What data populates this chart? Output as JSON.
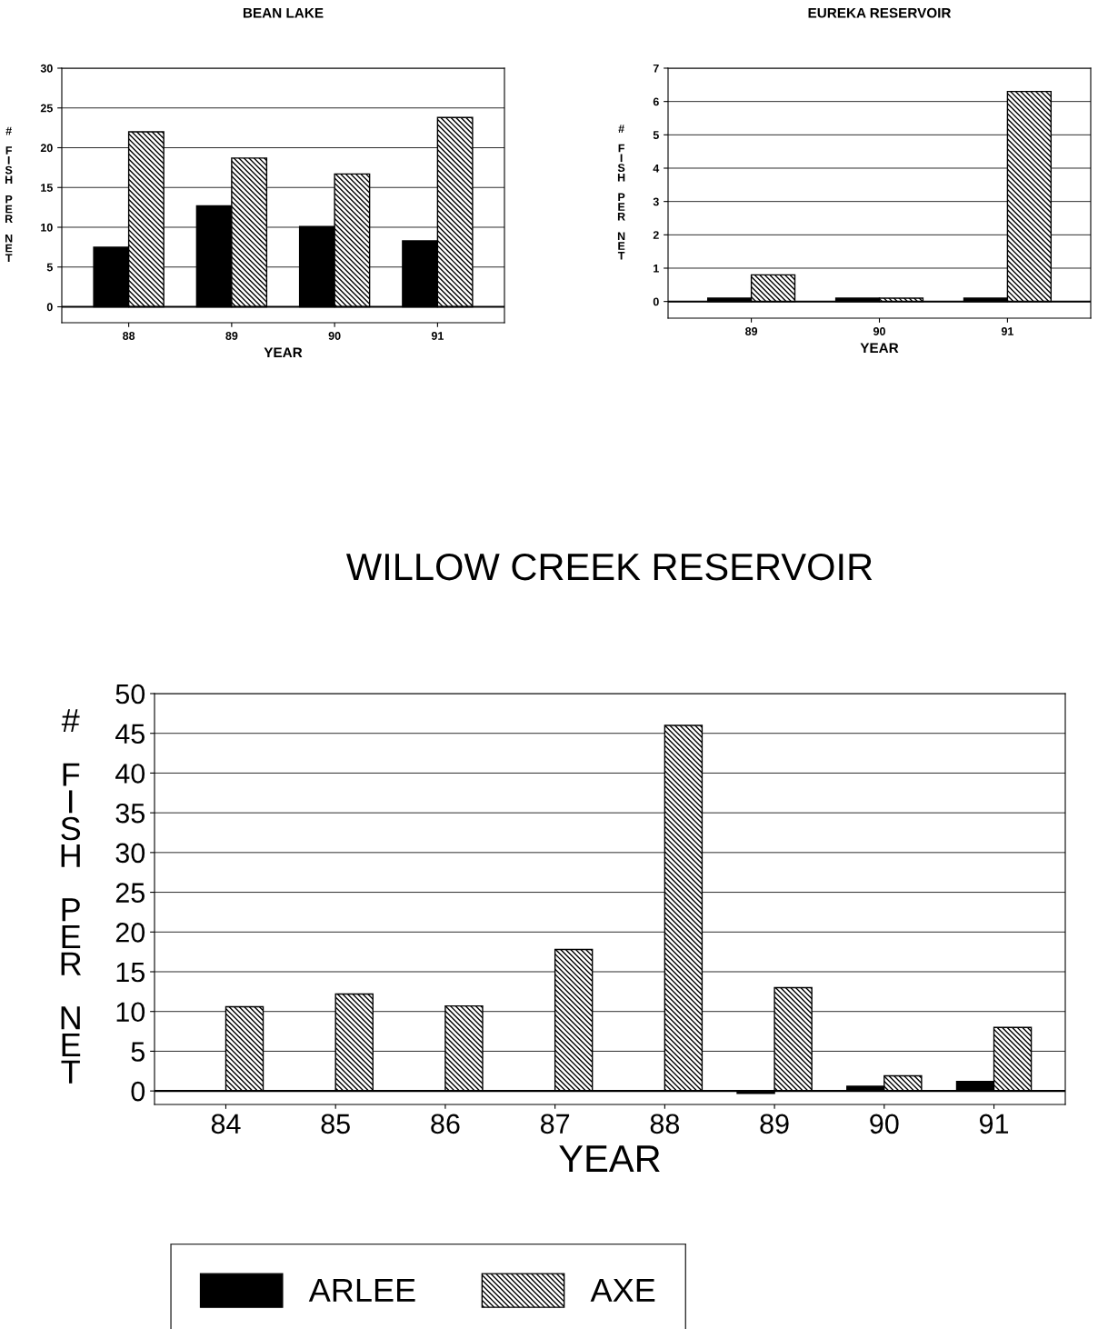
{
  "chart_data": [
    {
      "type": "bar",
      "title": "BEAN LAKE",
      "xlabel": "YEAR",
      "ylabel": "# FISH PER NET",
      "categories": [
        "88",
        "89",
        "90",
        "91"
      ],
      "series": [
        {
          "color": "#000000",
          "values": [
            7.5,
            12.7,
            10.1,
            8.3
          ]
        },
        {
          "color": "#000000",
          "values": [
            22.0,
            18.7,
            16.7,
            23.8
          ]
        }
      ],
      "ylim": [
        -2,
        30
      ],
      "yticks": [
        0,
        5,
        10,
        15,
        20,
        25,
        30
      ],
      "grid": "y"
    },
    {
      "type": "bar",
      "title": "EUREKA RESERVOIR",
      "xlabel": "YEAR",
      "ylabel": "# FISH PER NET",
      "categories": [
        "89",
        "90",
        "91"
      ],
      "series": [
        {
          "color": "#000000",
          "values": [
            0.1,
            0.1,
            0.1
          ]
        },
        {
          "color": "#000000",
          "values": [
            0.8,
            0.1,
            6.3
          ]
        }
      ],
      "ylim": [
        -0.5,
        7
      ],
      "yticks": [
        0,
        1,
        2,
        3,
        4,
        5,
        6,
        7
      ],
      "grid": "y"
    },
    {
      "type": "bar",
      "title": "WILLOW CREEK RESERVOIR",
      "xlabel": "YEAR",
      "ylabel": "# FISH PER NET",
      "categories": [
        "84",
        "85",
        "86",
        "87",
        "88",
        "89",
        "90",
        "91"
      ],
      "series": [
        {
          "name": "ARLEE",
          "color": "#000000",
          "values": [
            0,
            0,
            0,
            0,
            0,
            -0.3,
            0.6,
            1.2
          ]
        },
        {
          "name": "AXE",
          "color": "#000000",
          "values": [
            10.6,
            12.2,
            10.7,
            17.8,
            46.0,
            13.0,
            1.9,
            8.0
          ]
        }
      ],
      "ylim": [
        -1.7,
        50
      ],
      "yticks": [
        0,
        5,
        10,
        15,
        20,
        25,
        30,
        35,
        40,
        45,
        50
      ],
      "grid": "y",
      "legend": "bottom"
    }
  ]
}
